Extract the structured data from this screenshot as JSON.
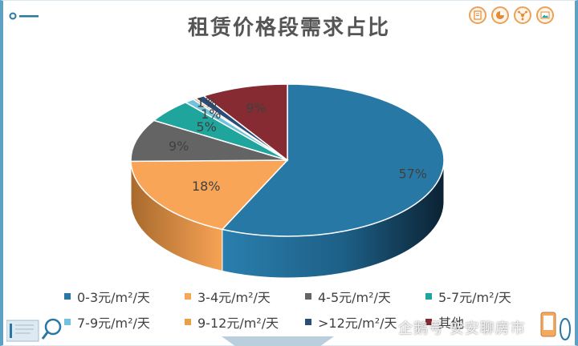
{
  "chart_data": {
    "type": "pie",
    "title": "租赁价格段需求占比",
    "labels": [
      "0-3元/m²/天",
      "3-4元/m²/天",
      "4-5元/m²/天",
      "5-7元/m²/天",
      "7-9元/m²/天",
      "9-12元/m²/天",
      ">12元/m²/天",
      "其他"
    ],
    "values": [
      57,
      18,
      9,
      5,
      1,
      0,
      1,
      9
    ],
    "data_labels": [
      "57%",
      "18%",
      "9%",
      "5%",
      "1%",
      "",
      "1%",
      "9%"
    ],
    "colors": [
      "#2778a5",
      "#f9a558",
      "#646464",
      "#1fa59c",
      "#6fc3dc",
      "#ea9e49",
      "#2a4d7b",
      "#852b31"
    ],
    "legend_position": "bottom",
    "style": "3d"
  },
  "toolbar": {
    "icons": [
      "page-icon",
      "pie-icon",
      "network-icon",
      "image-icon"
    ]
  },
  "watermark": "企鹅号 安安聊房市"
}
